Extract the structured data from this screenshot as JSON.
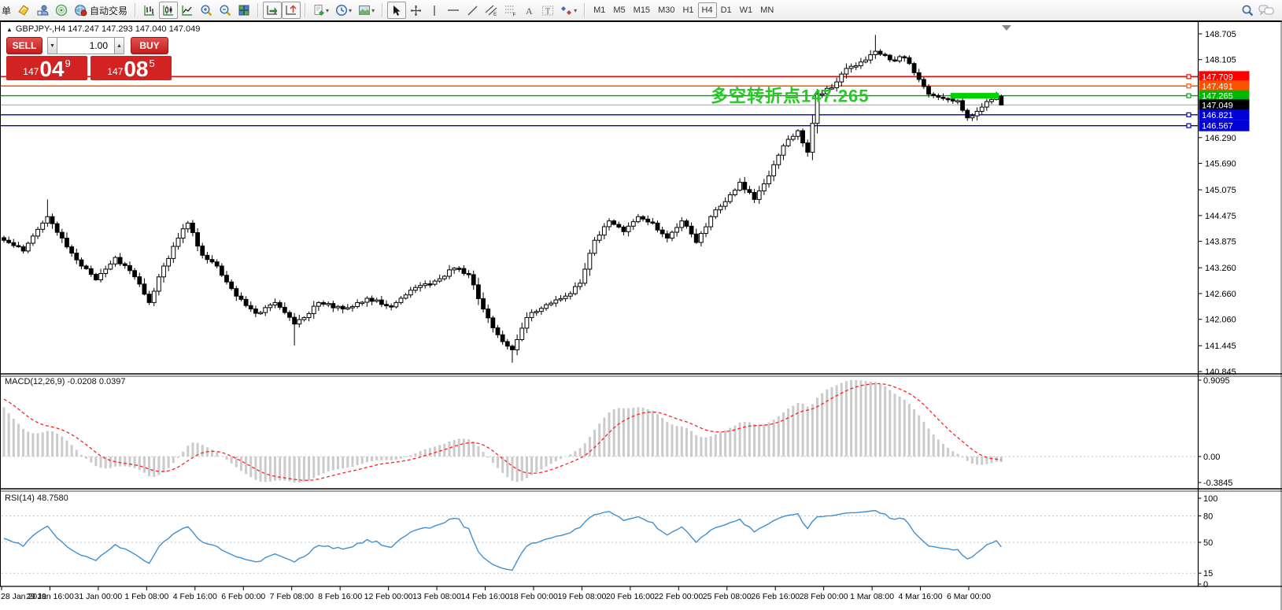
{
  "toolbar": {
    "order_label": "单",
    "auto_trading_label": "自动交易",
    "timeframes": [
      "M1",
      "M5",
      "M15",
      "M30",
      "H1",
      "H4",
      "D1",
      "W1",
      "MN"
    ],
    "active_timeframe": "H4",
    "icons": [
      "market-watch",
      "profile",
      "signals",
      "auto-trading",
      "bar-chart",
      "candlestick-chart",
      "line-chart",
      "zoom-in",
      "zoom-out",
      "tile-windows",
      "auto-scroll",
      "chart-shift",
      "add-indicator",
      "periods",
      "templates",
      "cursor",
      "crosshair",
      "vertical-line",
      "horizontal-line",
      "trend-line",
      "equidistant-channel",
      "fibonacci",
      "text",
      "text-label",
      "arrows",
      "search",
      "chat"
    ]
  },
  "chart": {
    "symbol_title": "GBPJPY-,H4 147.247 147.293 147.040 147.049",
    "trade_panel": {
      "sell_label": "SELL",
      "buy_label": "BUY",
      "volume": "1.00",
      "sell_prefix": "147",
      "sell_big": "04",
      "sell_sup": "9",
      "buy_prefix": "147",
      "buy_big": "08",
      "buy_sup": "5"
    },
    "annotation": {
      "text": "多空转折点147.265",
      "color": "#25c825"
    },
    "levels": [
      {
        "value": "147.709",
        "price": 147.709,
        "color": "#ff0000",
        "line": "#ff0000",
        "width": 1.8
      },
      {
        "value": "147.491",
        "price": 147.491,
        "color": "#ff5000",
        "line": "#ff5000",
        "width": 1.4
      },
      {
        "value": "147.265",
        "price": 147.265,
        "color": "#00b800",
        "line": "#00a000",
        "width": 1.4
      },
      {
        "value": "147.049",
        "price": 147.049,
        "color": "#000000",
        "line": "#b4b4b4",
        "width": 1.2,
        "current": true
      },
      {
        "value": "146.821",
        "price": 146.821,
        "color": "#0000d8",
        "line": "#0000c0",
        "width": 1.4
      },
      {
        "value": "146.567",
        "price": 146.567,
        "color": "#0000d8",
        "line": "#0000c0",
        "width": 1.4
      }
    ],
    "price_ticks": [
      "148.705",
      "148.105",
      "146.290",
      "145.690",
      "145.075",
      "144.475",
      "143.875",
      "143.260",
      "142.660",
      "142.060",
      "141.445",
      "140.845"
    ],
    "date_ticks": [
      "28 Jan 2019",
      "29 Jan 16:00",
      "31 Jan 00:00",
      "1 Feb 08:00",
      "4 Feb 16:00",
      "6 Feb 00:00",
      "7 Feb 08:00",
      "8 Feb 16:00",
      "12 Feb 00:00",
      "13 Feb 08:00",
      "14 Feb 16:00",
      "18 Feb 00:00",
      "19 Feb 08:00",
      "20 Feb 16:00",
      "22 Feb 00:00",
      "25 Feb 08:00",
      "26 Feb 16:00",
      "28 Feb 00:00",
      "1 Mar 08:00",
      "4 Mar 16:00",
      "6 Mar 00:00"
    ]
  },
  "macd": {
    "label": "MACD(12,26,9) -0.0208 0.0397",
    "scale": [
      "0.9095",
      "0.00",
      "-0.3845"
    ]
  },
  "rsi": {
    "label": "RSI(14) 48.7580",
    "scale": [
      "100",
      "80",
      "50",
      "15",
      "0"
    ]
  },
  "chart_data": [
    {
      "type": "candlestick",
      "symbol": "GBPJPY-",
      "timeframe": "H4",
      "title": "GBPJPY-,H4",
      "ohlc_current_bar": {
        "open": 147.247,
        "high": 147.293,
        "low": 147.04,
        "close": 147.049
      },
      "ylim": [
        140.845,
        148.705
      ],
      "candle_count": 207,
      "note": "closes interpolated between anchors [index, close]; estimated from pixels",
      "close_anchors": [
        [
          0,
          143.9
        ],
        [
          4,
          143.65
        ],
        [
          8,
          144.3
        ],
        [
          9,
          144.45
        ],
        [
          12,
          143.95
        ],
        [
          16,
          143.3
        ],
        [
          19,
          142.98
        ],
        [
          23,
          143.5
        ],
        [
          27,
          143.05
        ],
        [
          30,
          142.45
        ],
        [
          33,
          143.3
        ],
        [
          36,
          143.95
        ],
        [
          38,
          144.3
        ],
        [
          41,
          143.55
        ],
        [
          44,
          143.3
        ],
        [
          48,
          142.6
        ],
        [
          52,
          142.2
        ],
        [
          56,
          142.45
        ],
        [
          60,
          141.95
        ],
        [
          62,
          142.1
        ],
        [
          65,
          142.45
        ],
        [
          70,
          142.3
        ],
        [
          75,
          142.55
        ],
        [
          80,
          142.35
        ],
        [
          85,
          142.8
        ],
        [
          89,
          142.95
        ],
        [
          93,
          143.25
        ],
        [
          96,
          143.1
        ],
        [
          99,
          142.3
        ],
        [
          102,
          141.7
        ],
        [
          105,
          141.35
        ],
        [
          108,
          142.1
        ],
        [
          112,
          142.4
        ],
        [
          116,
          142.6
        ],
        [
          119,
          142.9
        ],
        [
          122,
          143.9
        ],
        [
          125,
          144.35
        ],
        [
          128,
          144.1
        ],
        [
          131,
          144.45
        ],
        [
          134,
          144.3
        ],
        [
          137,
          143.95
        ],
        [
          140,
          144.35
        ],
        [
          143,
          143.85
        ],
        [
          146,
          144.45
        ],
        [
          149,
          144.8
        ],
        [
          152,
          145.25
        ],
        [
          155,
          144.85
        ],
        [
          158,
          145.4
        ],
        [
          161,
          146.1
        ],
        [
          164,
          146.45
        ],
        [
          166,
          145.95
        ],
        [
          168,
          147.3
        ],
        [
          171,
          147.45
        ],
        [
          174,
          147.9
        ],
        [
          177,
          148.05
        ],
        [
          180,
          148.3
        ],
        [
          183,
          148.1
        ],
        [
          186,
          148.15
        ],
        [
          188,
          147.8
        ],
        [
          191,
          147.3
        ],
        [
          194,
          147.2
        ],
        [
          197,
          147.15
        ],
        [
          199,
          146.75
        ],
        [
          202,
          147.0
        ],
        [
          205,
          147.25
        ],
        [
          206,
          147.049
        ]
      ],
      "wick_overrides": {
        "9": {
          "high": 144.85
        },
        "60": {
          "low": 141.45
        },
        "105": {
          "low": 141.05
        },
        "180": {
          "high": 148.68
        },
        "206": {
          "high": 147.293,
          "low": 147.04
        }
      },
      "horizontal_levels": [
        147.709,
        147.491,
        147.265,
        147.049,
        146.821,
        146.567
      ],
      "highlight_bar": {
        "price": 147.265,
        "x_from_candle": 196,
        "x_to_candle": 205,
        "color": "#00d200"
      }
    },
    {
      "type": "bar+line",
      "name": "MACD(12,26,9)",
      "main_value": -0.0208,
      "signal_value": 0.0397,
      "range": [
        -0.3845,
        0.9095
      ],
      "note": "histogram + red dashed signal computed from candlestick closes above"
    },
    {
      "type": "line",
      "name": "RSI(14)",
      "value": 48.758,
      "range": [
        0,
        100
      ],
      "levels": [
        80,
        50,
        15
      ],
      "note": "blue RSI line computed from candlestick closes above"
    }
  ]
}
